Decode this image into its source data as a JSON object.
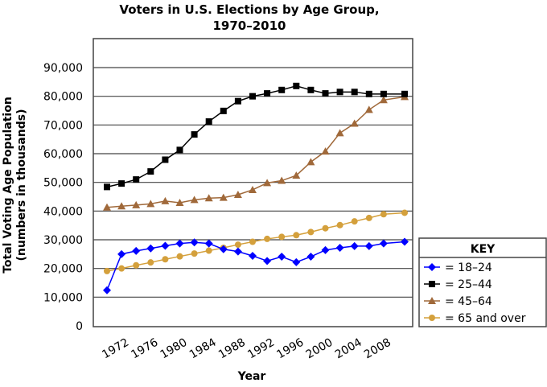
{
  "chart_data": {
    "type": "line",
    "title": "Voters in U.S. Elections by Age Group, 1970–2010",
    "title_lines": [
      "Voters in U.S. Elections by Age Group,",
      "1970–2010"
    ],
    "xlabel": "Year",
    "ylabel": "Total Voting Age Population (numbers in thousands)",
    "ylabel_lines": [
      "Total Voting Age Population",
      "(numbers in thousands)"
    ],
    "ylim": [
      0,
      90000
    ],
    "yticks": [
      "0",
      "10,000",
      "20,000",
      "30,000",
      "40,000",
      "50,000",
      "60,000",
      "70,000",
      "80,000",
      "90,000"
    ],
    "xticks": [
      "1972",
      "1976",
      "1980",
      "1984",
      "1988",
      "1992",
      "1996",
      "2000",
      "2004",
      "2008"
    ],
    "grid": true,
    "legend": {
      "title": "KEY",
      "placement": "right"
    },
    "x": [
      1970,
      1972,
      1974,
      1976,
      1978,
      1980,
      1982,
      1984,
      1986,
      1988,
      1990,
      1992,
      1994,
      1996,
      1998,
      2000,
      2002,
      2004,
      2006,
      2008,
      2010
    ],
    "series": [
      {
        "name": "= 18–24",
        "color": "#0000ff",
        "marker": "diamond",
        "values": [
          12400,
          25000,
          26100,
          27000,
          27900,
          28700,
          29100,
          28700,
          26700,
          25900,
          24400,
          22600,
          24100,
          22200,
          24100,
          26400,
          27200,
          27800,
          27800,
          28700,
          29300
        ]
      },
      {
        "name": "= 25–44",
        "color": "#000000",
        "marker": "square",
        "values": [
          48400,
          49600,
          51000,
          53800,
          57900,
          61300,
          66700,
          71200,
          74900,
          78300,
          80000,
          81000,
          82200,
          83600,
          82200,
          81000,
          81500,
          81500,
          80800,
          80800,
          80800
        ]
      },
      {
        "name": "= 45–64",
        "color": "#a0693a",
        "marker": "triangle",
        "values": [
          41300,
          41700,
          42100,
          42500,
          43500,
          42900,
          43900,
          44500,
          44700,
          45700,
          47400,
          49800,
          50600,
          52400,
          57100,
          60800,
          67200,
          70500,
          75300,
          78700,
          79800
        ]
      },
      {
        "name": "= 65 and over",
        "color": "#d4a03c",
        "marker": "circle",
        "values": [
          19100,
          20000,
          21100,
          22100,
          23200,
          24200,
          25200,
          26200,
          27200,
          28300,
          29300,
          30300,
          31000,
          31600,
          32700,
          34000,
          35100,
          36400,
          37600,
          38900,
          39400
        ]
      }
    ]
  }
}
